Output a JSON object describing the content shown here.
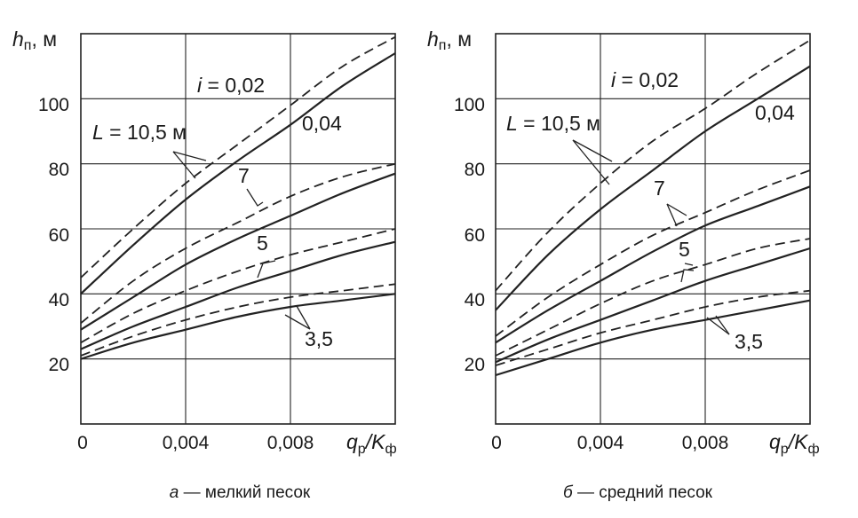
{
  "chart_data": [
    {
      "type": "line",
      "panel": "а",
      "caption_letter": "а",
      "caption": " — мелкий песок",
      "ylabel_main": "h",
      "ylabel_sub": "п",
      "ylabel_unit": ", м",
      "xlabel_main": "q",
      "xlabel_sub": "р",
      "xlabel_sep": "/K",
      "xlabel_sub2": "ф",
      "xlim": [
        0,
        0.012
      ],
      "ylim": [
        0,
        120
      ],
      "x_ticks": [
        0,
        0.004,
        0.008
      ],
      "x_tick_labels": [
        "0",
        "0,004",
        "0,008"
      ],
      "y_ticks": [
        20,
        40,
        60,
        80,
        100
      ],
      "y_tick_labels": [
        "20",
        "40",
        "60",
        "80",
        "100"
      ],
      "grid": true,
      "series": [
        {
          "L": 10.5,
          "i": 0.02,
          "style": "dashed",
          "x": [
            0,
            0.002,
            0.004,
            0.006,
            0.008,
            0.01,
            0.012
          ],
          "y": [
            45,
            60,
            74,
            86,
            98,
            110,
            119
          ]
        },
        {
          "L": 10.5,
          "i": 0.04,
          "style": "solid",
          "x": [
            0,
            0.002,
            0.004,
            0.006,
            0.008,
            0.01,
            0.012
          ],
          "y": [
            40,
            55,
            69,
            81,
            92,
            104,
            114
          ]
        },
        {
          "L": 7,
          "i": 0.02,
          "style": "dashed",
          "x": [
            0,
            0.002,
            0.004,
            0.006,
            0.008,
            0.01,
            0.012
          ],
          "y": [
            31,
            44,
            54,
            62,
            70,
            76,
            80
          ]
        },
        {
          "L": 7,
          "i": 0.04,
          "style": "solid",
          "x": [
            0,
            0.002,
            0.004,
            0.006,
            0.008,
            0.01,
            0.012
          ],
          "y": [
            29,
            39,
            49,
            57,
            64,
            71,
            77
          ]
        },
        {
          "L": 5,
          "i": 0.02,
          "style": "dashed",
          "x": [
            0,
            0.002,
            0.004,
            0.006,
            0.008,
            0.01,
            0.012
          ],
          "y": [
            25,
            34,
            41,
            47,
            52,
            56,
            60
          ]
        },
        {
          "L": 5,
          "i": 0.04,
          "style": "solid",
          "x": [
            0,
            0.002,
            0.004,
            0.006,
            0.008,
            0.01,
            0.012
          ],
          "y": [
            23,
            30,
            36,
            42,
            47,
            52,
            56
          ]
        },
        {
          "L": 3.5,
          "i": 0.02,
          "style": "dashed",
          "x": [
            0,
            0.002,
            0.004,
            0.006,
            0.008,
            0.01,
            0.012
          ],
          "y": [
            21,
            27,
            32,
            36,
            39,
            41,
            43
          ]
        },
        {
          "L": 3.5,
          "i": 0.04,
          "style": "solid",
          "x": [
            0,
            0.002,
            0.004,
            0.006,
            0.008,
            0.01,
            0.012
          ],
          "y": [
            20,
            25,
            29,
            33,
            36,
            38,
            40
          ]
        }
      ],
      "annotations": {
        "i_prefix": "i",
        "i_value": " = 0,02",
        "i2": "0,04",
        "L_prefix": "L",
        "L_value": " = 10,5 м",
        "L7": "7",
        "L5": "5",
        "L35": "3,5"
      }
    },
    {
      "type": "line",
      "panel": "б",
      "caption_letter": "б",
      "caption": " — средний песок",
      "ylabel_main": "h",
      "ylabel_sub": "п",
      "ylabel_unit": ", м",
      "xlabel_main": "q",
      "xlabel_sub": "р",
      "xlabel_sep": "/K",
      "xlabel_sub2": "ф",
      "xlim": [
        0,
        0.012
      ],
      "ylim": [
        0,
        120
      ],
      "x_ticks": [
        0,
        0.004,
        0.008
      ],
      "x_tick_labels": [
        "0",
        "0,004",
        "0,008"
      ],
      "y_ticks": [
        20,
        40,
        60,
        80,
        100
      ],
      "y_tick_labels": [
        "20",
        "40",
        "60",
        "80",
        "100"
      ],
      "grid": true,
      "series": [
        {
          "L": 10.5,
          "i": 0.02,
          "style": "dashed",
          "x": [
            0,
            0.002,
            0.004,
            0.006,
            0.008,
            0.01,
            0.012
          ],
          "y": [
            41,
            59,
            74,
            87,
            97,
            108,
            118
          ]
        },
        {
          "L": 10.5,
          "i": 0.04,
          "style": "solid",
          "x": [
            0,
            0.002,
            0.004,
            0.006,
            0.008,
            0.01,
            0.012
          ],
          "y": [
            35,
            52,
            66,
            78,
            90,
            100,
            110
          ]
        },
        {
          "L": 7,
          "i": 0.02,
          "style": "dashed",
          "x": [
            0,
            0.002,
            0.004,
            0.006,
            0.008,
            0.01,
            0.012
          ],
          "y": [
            27,
            39,
            49,
            58,
            65,
            72,
            78
          ]
        },
        {
          "L": 7,
          "i": 0.04,
          "style": "solid",
          "x": [
            0,
            0.002,
            0.004,
            0.006,
            0.008,
            0.01,
            0.012
          ],
          "y": [
            25,
            35,
            44,
            53,
            61,
            67,
            73
          ]
        },
        {
          "L": 5,
          "i": 0.02,
          "style": "dashed",
          "x": [
            0,
            0.002,
            0.004,
            0.006,
            0.008,
            0.01,
            0.012
          ],
          "y": [
            21,
            29,
            37,
            44,
            49,
            54,
            57
          ]
        },
        {
          "L": 5,
          "i": 0.04,
          "style": "solid",
          "x": [
            0,
            0.002,
            0.004,
            0.006,
            0.008,
            0.01,
            0.012
          ],
          "y": [
            19,
            26,
            32,
            38,
            44,
            49,
            54
          ]
        },
        {
          "L": 3.5,
          "i": 0.02,
          "style": "dashed",
          "x": [
            0,
            0.002,
            0.004,
            0.006,
            0.008,
            0.01,
            0.012
          ],
          "y": [
            18,
            23,
            28,
            32,
            36,
            39,
            41
          ]
        },
        {
          "L": 3.5,
          "i": 0.04,
          "style": "solid",
          "x": [
            0,
            0.002,
            0.004,
            0.006,
            0.008,
            0.01,
            0.012
          ],
          "y": [
            15,
            20,
            25,
            29,
            32,
            35,
            38
          ]
        }
      ],
      "annotations": {
        "i_prefix": "i",
        "i_value": " = 0,02",
        "i2": "0,04",
        "L_prefix": "L",
        "L_value": " = 10,5 м",
        "L7": "7",
        "L5": "5",
        "L35": "3,5"
      }
    }
  ]
}
